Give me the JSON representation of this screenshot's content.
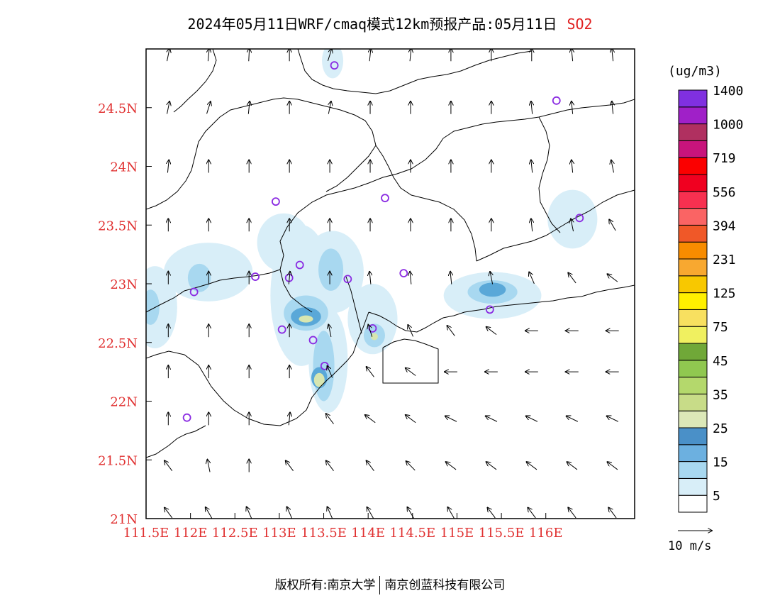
{
  "title": {
    "text": "2024年05月11日WRF/cmaq模式12km预报产品:05月11日",
    "pollutant": "SO2"
  },
  "map": {
    "lon_range": [
      111.5,
      117.0
    ],
    "lat_range": [
      21.0,
      25.0
    ],
    "lat_labels": [
      {
        "lat": 24.5,
        "text": "24.5N"
      },
      {
        "lat": 24.0,
        "text": "24N"
      },
      {
        "lat": 23.5,
        "text": "23.5N"
      },
      {
        "lat": 23.0,
        "text": "23N"
      },
      {
        "lat": 22.5,
        "text": "22.5N"
      },
      {
        "lat": 22.0,
        "text": "22N"
      },
      {
        "lat": 21.5,
        "text": "21.5N"
      },
      {
        "lat": 21.0,
        "text": "21N"
      }
    ],
    "lon_labels": [
      {
        "lon": 111.5,
        "text": "111.5E"
      },
      {
        "lon": 112.0,
        "text": "112E"
      },
      {
        "lon": 112.5,
        "text": "112.5E"
      },
      {
        "lon": 113.0,
        "text": "113E"
      },
      {
        "lon": 113.5,
        "text": "113.5E"
      },
      {
        "lon": 114.0,
        "text": "114E"
      },
      {
        "lon": 114.5,
        "text": "114.5E"
      },
      {
        "lon": 115.0,
        "text": "115E"
      },
      {
        "lon": 115.5,
        "text": "115.5E"
      },
      {
        "lon": 116.0,
        "text": "116E"
      }
    ],
    "stations": [
      {
        "lon": 113.62,
        "lat": 24.86
      },
      {
        "lon": 116.12,
        "lat": 24.56
      },
      {
        "lon": 112.96,
        "lat": 23.7
      },
      {
        "lon": 114.19,
        "lat": 23.73
      },
      {
        "lon": 116.38,
        "lat": 23.56
      },
      {
        "lon": 113.23,
        "lat": 23.16
      },
      {
        "lon": 113.11,
        "lat": 23.05
      },
      {
        "lon": 112.73,
        "lat": 23.06
      },
      {
        "lon": 113.77,
        "lat": 23.04
      },
      {
        "lon": 114.4,
        "lat": 23.09
      },
      {
        "lon": 112.04,
        "lat": 22.93
      },
      {
        "lon": 113.03,
        "lat": 22.61
      },
      {
        "lon": 113.38,
        "lat": 22.52
      },
      {
        "lon": 114.05,
        "lat": 22.62
      },
      {
        "lon": 113.51,
        "lat": 22.3
      },
      {
        "lon": 115.37,
        "lat": 22.78
      },
      {
        "lon": 111.96,
        "lat": 21.86
      }
    ],
    "concentration_blobs": [
      {
        "lon": 113.25,
        "lat": 22.9,
        "rx": 0.35,
        "ry": 0.6,
        "level": 0
      },
      {
        "lon": 113.05,
        "lat": 23.35,
        "rx": 0.3,
        "ry": 0.25,
        "level": 0
      },
      {
        "lon": 113.6,
        "lat": 23.1,
        "rx": 0.35,
        "ry": 0.35,
        "level": 0
      },
      {
        "lon": 112.2,
        "lat": 23.1,
        "rx": 0.5,
        "ry": 0.25,
        "level": 0
      },
      {
        "lon": 111.6,
        "lat": 22.8,
        "rx": 0.25,
        "ry": 0.35,
        "level": 0
      },
      {
        "lon": 113.55,
        "lat": 22.35,
        "rx": 0.22,
        "ry": 0.45,
        "level": 0
      },
      {
        "lon": 114.05,
        "lat": 22.7,
        "rx": 0.28,
        "ry": 0.3,
        "level": 0
      },
      {
        "lon": 115.4,
        "lat": 22.9,
        "rx": 0.55,
        "ry": 0.2,
        "level": 0
      },
      {
        "lon": 116.3,
        "lat": 23.55,
        "rx": 0.28,
        "ry": 0.25,
        "level": 0
      },
      {
        "lon": 113.6,
        "lat": 24.9,
        "rx": 0.12,
        "ry": 0.15,
        "level": 0
      },
      {
        "lon": 113.3,
        "lat": 22.75,
        "rx": 0.25,
        "ry": 0.15,
        "level": 1
      },
      {
        "lon": 113.58,
        "lat": 23.12,
        "rx": 0.14,
        "ry": 0.18,
        "level": 1
      },
      {
        "lon": 112.1,
        "lat": 23.05,
        "rx": 0.13,
        "ry": 0.12,
        "level": 1
      },
      {
        "lon": 111.55,
        "lat": 22.8,
        "rx": 0.1,
        "ry": 0.15,
        "level": 1
      },
      {
        "lon": 113.5,
        "lat": 22.3,
        "rx": 0.12,
        "ry": 0.3,
        "level": 1
      },
      {
        "lon": 114.07,
        "lat": 22.56,
        "rx": 0.12,
        "ry": 0.1,
        "level": 1
      },
      {
        "lon": 115.4,
        "lat": 22.93,
        "rx": 0.28,
        "ry": 0.1,
        "level": 1
      },
      {
        "lon": 113.3,
        "lat": 22.72,
        "rx": 0.17,
        "ry": 0.08,
        "level": 2
      },
      {
        "lon": 113.45,
        "lat": 22.2,
        "rx": 0.09,
        "ry": 0.09,
        "level": 2
      },
      {
        "lon": 115.4,
        "lat": 22.95,
        "rx": 0.15,
        "ry": 0.06,
        "level": 2
      },
      {
        "lon": 113.3,
        "lat": 22.7,
        "rx": 0.08,
        "ry": 0.03,
        "level": 3
      },
      {
        "lon": 113.45,
        "lat": 22.18,
        "rx": 0.06,
        "ry": 0.06,
        "level": 3
      },
      {
        "lon": 114.07,
        "lat": 22.55,
        "rx": 0.04,
        "ry": 0.03,
        "level": 3
      }
    ],
    "blob_colors": [
      "#d8eef8",
      "#a8d8f0",
      "#5aa8d8",
      "#d8e6b0"
    ],
    "wind_rows": [
      {
        "lat": 24.95,
        "u": [
          0.2,
          0.1,
          0.05,
          0.0,
          0.3,
          0.1,
          0.1,
          0.0,
          0.0,
          0.0,
          -0.1,
          -0.1
        ]
      },
      {
        "lat": 24.5,
        "u": [
          0.2,
          0.3,
          0.1,
          0.0,
          0.2,
          0.0,
          0.0,
          0.0,
          0.0,
          -0.1,
          -0.1,
          -0.1
        ]
      },
      {
        "lat": 24.0,
        "u": [
          0.1,
          0.0,
          0.0,
          0.0,
          0.0,
          0.0,
          0.0,
          0.0,
          0.0,
          -0.1,
          -0.1,
          -0.2
        ]
      },
      {
        "lat": 23.5,
        "u": [
          0.0,
          0.0,
          0.0,
          0.0,
          0.0,
          0.0,
          0.0,
          0.0,
          0.0,
          -0.1,
          -0.2,
          -0.5
        ]
      },
      {
        "lat": 23.05,
        "u": [
          0.0,
          0.0,
          0.0,
          0.1,
          0.0,
          -0.1,
          -0.1,
          -0.1,
          -0.2,
          -0.4,
          -0.6,
          -0.8
        ]
      },
      {
        "lat": 22.6,
        "u": [
          0.0,
          0.0,
          0.0,
          0.0,
          -0.2,
          -0.3,
          -0.4,
          -0.6,
          -0.8,
          -1.0,
          -1.0,
          -1.0
        ]
      },
      {
        "lat": 22.25,
        "u": [
          0.0,
          0.0,
          0.0,
          0.0,
          -0.4,
          -0.6,
          -0.8,
          -1.0,
          -1.0,
          -1.0,
          -1.0,
          -1.0
        ]
      },
      {
        "lat": 21.85,
        "u": [
          0.0,
          0.0,
          0.0,
          0.1,
          -0.6,
          -0.8,
          -0.8,
          -0.9,
          -0.9,
          -0.9,
          -0.9,
          -0.9
        ]
      },
      {
        "lat": 21.45,
        "u": [
          -0.6,
          -0.2,
          0.0,
          -0.6,
          -0.6,
          -0.6,
          -0.7,
          -0.8,
          -0.8,
          -0.8,
          -0.8,
          -0.8
        ]
      },
      {
        "lat": 21.05,
        "u": [
          -0.6,
          -0.5,
          -0.4,
          -0.4,
          -0.4,
          -0.5,
          -0.5,
          -0.5,
          -0.6,
          -0.6,
          -0.6,
          -0.6
        ]
      }
    ]
  },
  "legend": {
    "unit": "(ug/m3)",
    "colors": [
      "#ffffff",
      "#d8eef8",
      "#a8d8f0",
      "#6cb0e0",
      "#4a90c8",
      "#dce8b8",
      "#c8dc88",
      "#b4d86c",
      "#90c850",
      "#70a838",
      "#f0f060",
      "#f8e060",
      "#fff000",
      "#f8c800",
      "#f8a830",
      "#f88c00",
      "#f05828",
      "#fa6464",
      "#f83050",
      "#f00020",
      "#fb0000",
      "#c8147c",
      "#b03060",
      "#a020c8",
      "#8030e0"
    ],
    "labels": [
      "5",
      "15",
      "25",
      "35",
      "45",
      "75",
      "125",
      "231",
      "394",
      "556",
      "719",
      "1000",
      "1400"
    ],
    "scale_label": "10 m/s"
  },
  "footer": {
    "left": "版权所有:南京大学",
    "right": "南京创蓝科技有限公司"
  }
}
